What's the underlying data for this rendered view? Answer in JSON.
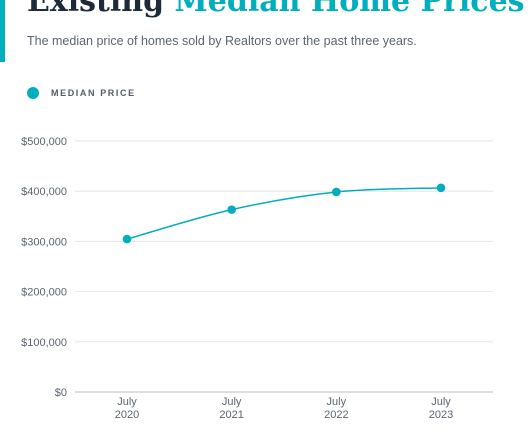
{
  "header": {
    "title_part1": "Existing",
    "title_part2": "Median Home Prices",
    "subtitle": "The median price of homes sold by Realtors over the past three years."
  },
  "colors": {
    "accent": "#00aebd",
    "title": "#1e2a38",
    "grid": "#e6e6e6"
  },
  "chart_data": {
    "type": "line",
    "title": "Existing Median Home Prices",
    "subtitle": "The median price of homes sold by Realtors over the past three years.",
    "categories": [
      [
        "July",
        "2020"
      ],
      [
        "July",
        "2021"
      ],
      [
        "July",
        "2022"
      ],
      [
        "July",
        "2023"
      ]
    ],
    "series": [
      {
        "name": "MEDIAN PRICE",
        "values": [
          304600,
          363300,
          398500,
          406700
        ],
        "color": "#00aebd"
      }
    ],
    "yticks": [
      0,
      100000,
      200000,
      300000,
      400000,
      500000
    ],
    "ytick_labels": [
      "$0",
      "$100,000",
      "$200,000",
      "$300,000",
      "$400,000",
      "$500,000"
    ],
    "ylim": [
      0,
      500000
    ],
    "grid": true,
    "legend_position": "top-left",
    "xlabel": "",
    "ylabel": ""
  }
}
